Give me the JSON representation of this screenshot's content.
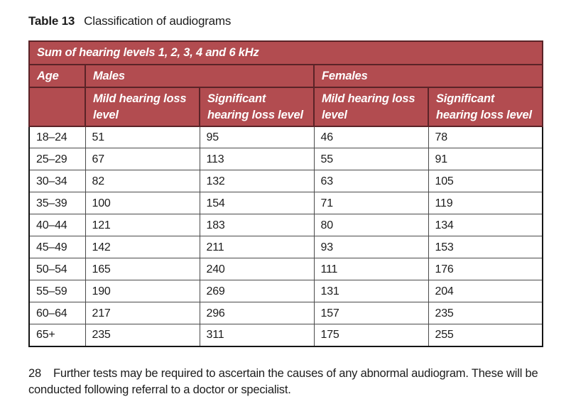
{
  "title": {
    "label": "Table 13",
    "caption": "Classification of audiograms"
  },
  "table": {
    "top_header": "Sum of hearing levels 1, 2, 3, 4 and 6 kHz",
    "age_header": "Age",
    "males_header": "Males",
    "females_header": "Females",
    "mild_subheader": "Mild hearing loss level",
    "significant_subheader": "Significant hearing loss level",
    "rows": [
      {
        "age": "18–24",
        "males_mild": "51",
        "males_significant": "95",
        "females_mild": "46",
        "females_significant": "78"
      },
      {
        "age": "25–29",
        "males_mild": "67",
        "males_significant": "113",
        "females_mild": "55",
        "females_significant": "91"
      },
      {
        "age": "30–34",
        "males_mild": "82",
        "males_significant": "132",
        "females_mild": "63",
        "females_significant": "105"
      },
      {
        "age": "35–39",
        "males_mild": "100",
        "males_significant": "154",
        "females_mild": "71",
        "females_significant": "119"
      },
      {
        "age": "40–44",
        "males_mild": "121",
        "males_significant": "183",
        "females_mild": "80",
        "females_significant": "134"
      },
      {
        "age": "45–49",
        "males_mild": "142",
        "males_significant": "211",
        "females_mild": "93",
        "females_significant": "153"
      },
      {
        "age": "50–54",
        "males_mild": "165",
        "males_significant": "240",
        "females_mild": "111",
        "females_significant": "176"
      },
      {
        "age": "55–59",
        "males_mild": "190",
        "males_significant": "269",
        "females_mild": "131",
        "females_significant": "204"
      },
      {
        "age": "60–64",
        "males_mild": "217",
        "males_significant": "296",
        "females_mild": "157",
        "females_significant": "235"
      },
      {
        "age": "65+",
        "males_mild": "235",
        "males_significant": "311",
        "females_mild": "175",
        "females_significant": "255"
      }
    ]
  },
  "footnote": {
    "number": "28",
    "text": "Further tests may be required to ascertain the causes of any abnormal audiogram. These will be conducted following referral to a doctor or specialist."
  },
  "colors": {
    "header_bg": "#b24c50",
    "header_border": "#5a2327",
    "header_text": "#ffffff",
    "grid_border": "#4a4a4a",
    "outer_border": "#161616",
    "text": "#1c1c1c",
    "page_bg": "#ffffff"
  }
}
